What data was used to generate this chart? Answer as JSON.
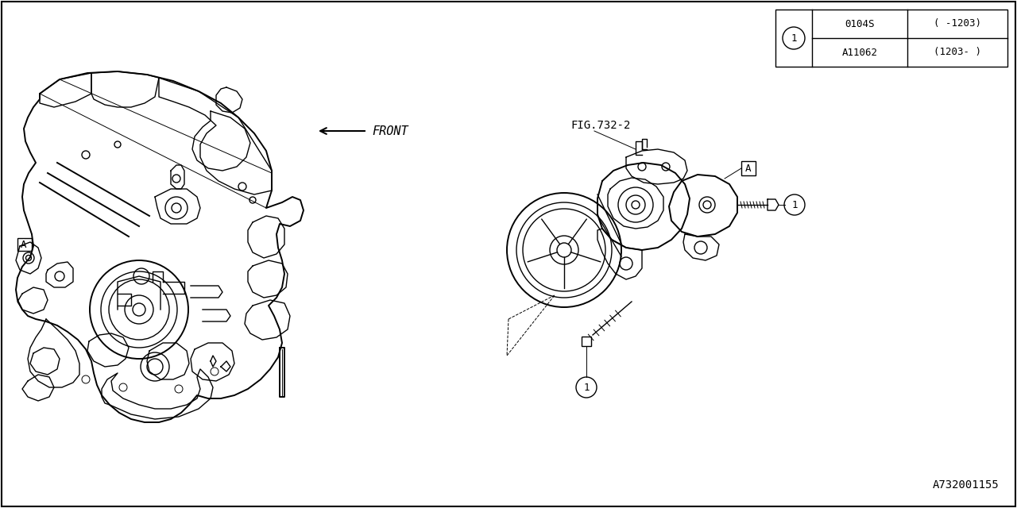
{
  "background_color": "#ffffff",
  "line_color": "#000000",
  "fig_label": "A732001155",
  "front_label": "FRONT",
  "fig_ref": "FIG.732-2",
  "table_rows": [
    [
      "0104S",
      "( -1203)"
    ],
    [
      "A11062",
      "(1203- )"
    ]
  ],
  "table_circle": "1",
  "lw_main": 1.0,
  "lw_thick": 1.4,
  "lw_thin": 0.7,
  "font_size_main": 10,
  "font_size_small": 9,
  "font_size_label": 11
}
